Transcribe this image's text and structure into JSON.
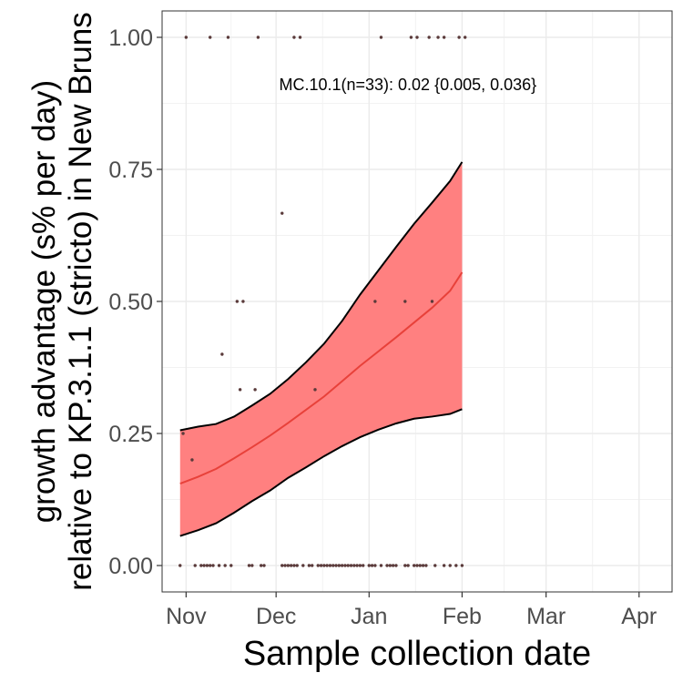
{
  "chart_data": {
    "type": "line",
    "title": "",
    "xlabel": "Sample collection date",
    "ylabel_lines": [
      "growth advantage (s% per day)",
      "relative to KP.3.1.1 (stricto) in New Bruns"
    ],
    "x_axis": {
      "type": "date",
      "range": [
        "2024-10-24",
        "2025-04-12"
      ],
      "ticks": [
        {
          "date": "2024-11-01",
          "label": "Nov"
        },
        {
          "date": "2024-12-01",
          "label": "Dec"
        },
        {
          "date": "2025-01-01",
          "label": "Jan"
        },
        {
          "date": "2025-02-01",
          "label": "Feb"
        },
        {
          "date": "2025-03-01",
          "label": "Mar"
        },
        {
          "date": "2025-04-01",
          "label": "Apr"
        }
      ]
    },
    "y_axis": {
      "range": [
        -0.05,
        1.05
      ],
      "ticks": [
        {
          "value": 0,
          "label": "0.00"
        },
        {
          "value": 0.25,
          "label": "0.25"
        },
        {
          "value": 0.5,
          "label": "0.50"
        },
        {
          "value": 0.75,
          "label": "0.75"
        },
        {
          "value": 1,
          "label": "1.00"
        }
      ]
    },
    "grid": true,
    "annotation": {
      "text": "MC.10.1(n=33): 0.02 {0.005, 0.036}",
      "date": "2024-12-02",
      "value": 0.91
    },
    "series": [
      {
        "kind": "ribbon",
        "color": "#ff8080",
        "x": [
          "2024-10-30",
          "2024-11-05",
          "2024-11-11",
          "2024-11-17",
          "2024-11-23",
          "2024-11-29",
          "2024-12-05",
          "2024-12-11",
          "2024-12-17",
          "2024-12-23",
          "2024-12-29",
          "2025-01-04",
          "2025-01-10",
          "2025-01-16",
          "2025-01-22",
          "2025-01-28",
          "2025-02-01"
        ],
        "lower": [
          0.056,
          0.067,
          0.08,
          0.1,
          0.122,
          0.142,
          0.166,
          0.186,
          0.207,
          0.226,
          0.243,
          0.257,
          0.269,
          0.278,
          0.282,
          0.287,
          0.296
        ],
        "upper": [
          0.256,
          0.263,
          0.268,
          0.282,
          0.303,
          0.325,
          0.353,
          0.385,
          0.42,
          0.463,
          0.513,
          0.558,
          0.603,
          0.647,
          0.687,
          0.728,
          0.764
        ]
      },
      {
        "kind": "line",
        "color": "#e8413a",
        "x": [
          "2024-10-30",
          "2024-11-05",
          "2024-11-11",
          "2024-11-17",
          "2024-11-23",
          "2024-11-29",
          "2024-12-05",
          "2024-12-11",
          "2024-12-17",
          "2024-12-23",
          "2024-12-29",
          "2025-01-04",
          "2025-01-10",
          "2025-01-16",
          "2025-01-22",
          "2025-01-28",
          "2025-02-01"
        ],
        "y": [
          0.155,
          0.168,
          0.183,
          0.203,
          0.224,
          0.246,
          0.27,
          0.295,
          0.32,
          0.349,
          0.378,
          0.405,
          0.432,
          0.46,
          0.488,
          0.52,
          0.555
        ]
      },
      {
        "kind": "points",
        "color": "#5a3a3a",
        "points": [
          {
            "date": "2024-11-01",
            "value": 1.0
          },
          {
            "date": "2024-11-09",
            "value": 1.0
          },
          {
            "date": "2024-11-15",
            "value": 1.0
          },
          {
            "date": "2024-11-25",
            "value": 1.0
          },
          {
            "date": "2024-12-07",
            "value": 1.0
          },
          {
            "date": "2024-12-09",
            "value": 1.0
          },
          {
            "date": "2025-01-05",
            "value": 1.0
          },
          {
            "date": "2025-01-15",
            "value": 1.0
          },
          {
            "date": "2025-01-17",
            "value": 1.0
          },
          {
            "date": "2025-01-21",
            "value": 1.0
          },
          {
            "date": "2025-01-24",
            "value": 1.0
          },
          {
            "date": "2025-01-26",
            "value": 1.0
          },
          {
            "date": "2025-01-31",
            "value": 1.0
          },
          {
            "date": "2025-02-02",
            "value": 1.0
          },
          {
            "date": "2024-12-03",
            "value": 0.667
          },
          {
            "date": "2024-11-18",
            "value": 0.5
          },
          {
            "date": "2024-11-20",
            "value": 0.5
          },
          {
            "date": "2025-01-03",
            "value": 0.5
          },
          {
            "date": "2025-01-13",
            "value": 0.5
          },
          {
            "date": "2025-01-22",
            "value": 0.5
          },
          {
            "date": "2024-11-13",
            "value": 0.4
          },
          {
            "date": "2024-11-19",
            "value": 0.333
          },
          {
            "date": "2024-11-24",
            "value": 0.333
          },
          {
            "date": "2024-12-14",
            "value": 0.333
          },
          {
            "date": "2024-10-31",
            "value": 0.25
          },
          {
            "date": "2024-11-03",
            "value": 0.2
          },
          {
            "date": "2024-10-30",
            "value": 0
          },
          {
            "date": "2024-11-04",
            "value": 0
          },
          {
            "date": "2024-11-06",
            "value": 0
          },
          {
            "date": "2024-11-07",
            "value": 0
          },
          {
            "date": "2024-11-08",
            "value": 0
          },
          {
            "date": "2024-11-09",
            "value": 0
          },
          {
            "date": "2024-11-10",
            "value": 0
          },
          {
            "date": "2024-11-12",
            "value": 0
          },
          {
            "date": "2024-11-14",
            "value": 0
          },
          {
            "date": "2024-11-16",
            "value": 0
          },
          {
            "date": "2024-11-22",
            "value": 0
          },
          {
            "date": "2024-11-23",
            "value": 0
          },
          {
            "date": "2024-11-26",
            "value": 0
          },
          {
            "date": "2024-11-27",
            "value": 0
          },
          {
            "date": "2024-12-03",
            "value": 0
          },
          {
            "date": "2024-12-04",
            "value": 0
          },
          {
            "date": "2024-12-05",
            "value": 0
          },
          {
            "date": "2024-12-06",
            "value": 0
          },
          {
            "date": "2024-12-07",
            "value": 0
          },
          {
            "date": "2024-12-08",
            "value": 0
          },
          {
            "date": "2024-12-10",
            "value": 0
          },
          {
            "date": "2024-12-12",
            "value": 0
          },
          {
            "date": "2024-12-13",
            "value": 0
          },
          {
            "date": "2024-12-15",
            "value": 0
          },
          {
            "date": "2024-12-16",
            "value": 0
          },
          {
            "date": "2024-12-17",
            "value": 0
          },
          {
            "date": "2024-12-18",
            "value": 0
          },
          {
            "date": "2024-12-19",
            "value": 0
          },
          {
            "date": "2024-12-20",
            "value": 0
          },
          {
            "date": "2024-12-21",
            "value": 0
          },
          {
            "date": "2024-12-22",
            "value": 0
          },
          {
            "date": "2024-12-23",
            "value": 0
          },
          {
            "date": "2024-12-24",
            "value": 0
          },
          {
            "date": "2024-12-25",
            "value": 0
          },
          {
            "date": "2024-12-26",
            "value": 0
          },
          {
            "date": "2024-12-27",
            "value": 0
          },
          {
            "date": "2024-12-28",
            "value": 0
          },
          {
            "date": "2024-12-29",
            "value": 0
          },
          {
            "date": "2024-12-30",
            "value": 0
          },
          {
            "date": "2025-01-01",
            "value": 0
          },
          {
            "date": "2025-01-02",
            "value": 0
          },
          {
            "date": "2025-01-03",
            "value": 0
          },
          {
            "date": "2025-01-05",
            "value": 0
          },
          {
            "date": "2025-01-07",
            "value": 0
          },
          {
            "date": "2025-01-08",
            "value": 0
          },
          {
            "date": "2025-01-09",
            "value": 0
          },
          {
            "date": "2025-01-10",
            "value": 0
          },
          {
            "date": "2025-01-13",
            "value": 0
          },
          {
            "date": "2025-01-14",
            "value": 0
          },
          {
            "date": "2025-01-16",
            "value": 0
          },
          {
            "date": "2025-01-17",
            "value": 0
          },
          {
            "date": "2025-01-18",
            "value": 0
          },
          {
            "date": "2025-01-19",
            "value": 0
          },
          {
            "date": "2025-01-20",
            "value": 0
          },
          {
            "date": "2025-01-23",
            "value": 0
          },
          {
            "date": "2025-01-26",
            "value": 0
          },
          {
            "date": "2025-01-28",
            "value": 0
          },
          {
            "date": "2025-01-30",
            "value": 0
          },
          {
            "date": "2025-02-01",
            "value": 0
          }
        ]
      }
    ]
  }
}
